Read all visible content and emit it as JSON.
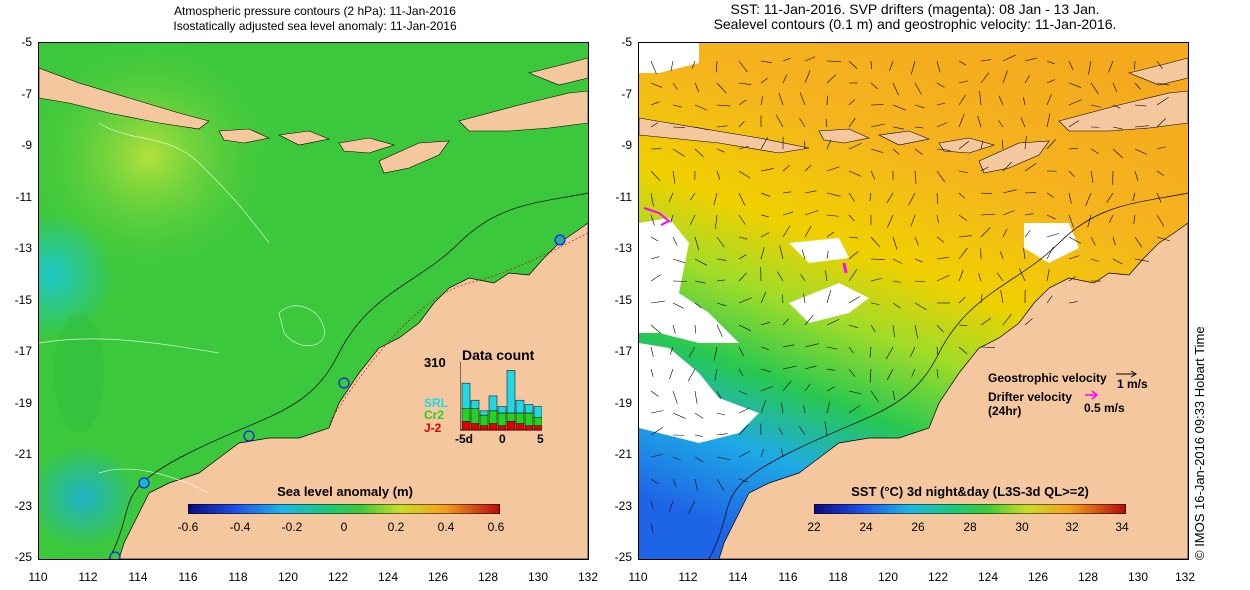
{
  "left_map": {
    "title_line1": "Atmospheric pressure contours (2 hPa): 11-Jan-2016",
    "title_line2": "Isostatically adjusted sea level anomaly: 11-Jan-2016",
    "y_ticks": [
      "-5",
      "-7",
      "-9",
      "-11",
      "-13",
      "-15",
      "-17",
      "-19",
      "-21",
      "-23",
      "-25"
    ],
    "x_ticks": [
      "110",
      "112",
      "114",
      "116",
      "118",
      "120",
      "122",
      "124",
      "126",
      "128",
      "130",
      "132"
    ],
    "colorbar": {
      "label": "Sea level anomaly (m)",
      "ticks": [
        "-0.6",
        "-0.4",
        "-0.2",
        "0",
        "0.2",
        "0.4",
        "0.6"
      ]
    },
    "data_count": {
      "title": "Data count",
      "max_label": "310",
      "x_ticks": [
        "-5d",
        "0",
        "5"
      ],
      "legend": [
        "SRL",
        "Cr2",
        "J-2"
      ],
      "legend_colors": [
        "#22d6e6",
        "#22d422",
        "#e00000"
      ],
      "bars": [
        {
          "srl": 120,
          "cr2": 60,
          "j2": 40
        },
        {
          "srl": 40,
          "cr2": 70,
          "j2": 30
        },
        {
          "srl": 20,
          "cr2": 50,
          "j2": 20
        },
        {
          "srl": 70,
          "cr2": 60,
          "j2": 30
        },
        {
          "srl": 30,
          "cr2": 60,
          "j2": 20
        },
        {
          "srl": 200,
          "cr2": 40,
          "j2": 40
        },
        {
          "srl": 60,
          "cr2": 50,
          "j2": 30
        },
        {
          "srl": 40,
          "cr2": 60,
          "j2": 20
        },
        {
          "srl": 50,
          "cr2": 40,
          "j2": 20
        }
      ]
    }
  },
  "right_map": {
    "title_line1": "SST: 11-Jan-2016. SVP drifters (magenta): 08 Jan - 13 Jan.",
    "title_line2": "Sealevel contours (0.1 m) and geostrophic velocity: 11-Jan-2016.",
    "y_ticks": [
      "-5",
      "-7",
      "-9",
      "-11",
      "-13",
      "-15",
      "-17",
      "-19",
      "-21",
      "-23",
      "-25"
    ],
    "x_ticks": [
      "110",
      "112",
      "114",
      "116",
      "118",
      "120",
      "122",
      "124",
      "126",
      "128",
      "130",
      "132"
    ],
    "colorbar": {
      "label": "SST (°C) 3d night&day (L3S-3d QL>=2)",
      "ticks": [
        "22",
        "24",
        "26",
        "28",
        "30",
        "32",
        "34"
      ]
    },
    "legend": {
      "geo_label": "Geostrophic velocity",
      "geo_value": "1 m/s",
      "drifter_label_1": "Drifter velocity",
      "drifter_label_2": "(24hr)",
      "drifter_value": "0.5 m/s"
    }
  },
  "credit": "© IMOS 16-Jan-2016 09:33 Hobart Time",
  "colors": {
    "land": "#f5c79e",
    "ocean_green": "#3cc83c",
    "ocean_yellow": "#f0c800",
    "drifter": "#ff00ff"
  }
}
